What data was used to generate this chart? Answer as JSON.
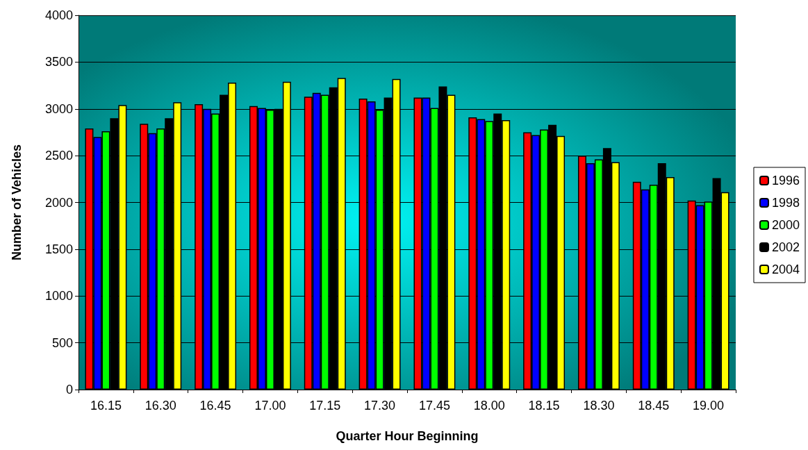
{
  "chart_data": {
    "type": "bar",
    "xlabel": "Quarter Hour Beginning",
    "ylabel": "Number of Vehicles",
    "categories": [
      "16.15",
      "16.30",
      "16.45",
      "17.00",
      "17.15",
      "17.30",
      "17.45",
      "18.00",
      "18.15",
      "18.30",
      "18.45",
      "19.00"
    ],
    "series": [
      {
        "name": "1996",
        "color": "#ff0000",
        "values": [
          2790,
          2840,
          3050,
          3030,
          3130,
          3110,
          3120,
          2910,
          2750,
          2500,
          2220,
          2020
        ]
      },
      {
        "name": "1998",
        "color": "#0000ff",
        "values": [
          2700,
          2740,
          3000,
          3010,
          3170,
          3080,
          3120,
          2890,
          2720,
          2420,
          2140,
          1970
        ]
      },
      {
        "name": "2000",
        "color": "#00ff00",
        "values": [
          2760,
          2790,
          2950,
          2990,
          3150,
          2990,
          3010,
          2870,
          2780,
          2460,
          2190,
          2010
        ]
      },
      {
        "name": "2002",
        "color": "#000000",
        "values": [
          2900,
          2900,
          3150,
          3000,
          3230,
          3120,
          3240,
          2950,
          2830,
          2580,
          2420,
          2260
        ]
      },
      {
        "name": "2004",
        "color": "#ffff00",
        "values": [
          3040,
          3070,
          3280,
          3290,
          3330,
          3320,
          3150,
          2880,
          2710,
          2430,
          2270,
          2110
        ]
      }
    ],
    "ylim": [
      0,
      4000
    ],
    "yticks": [
      0,
      500,
      1000,
      1500,
      2000,
      2500,
      3000,
      3500,
      4000
    ],
    "grid": "y",
    "legend": "right"
  }
}
